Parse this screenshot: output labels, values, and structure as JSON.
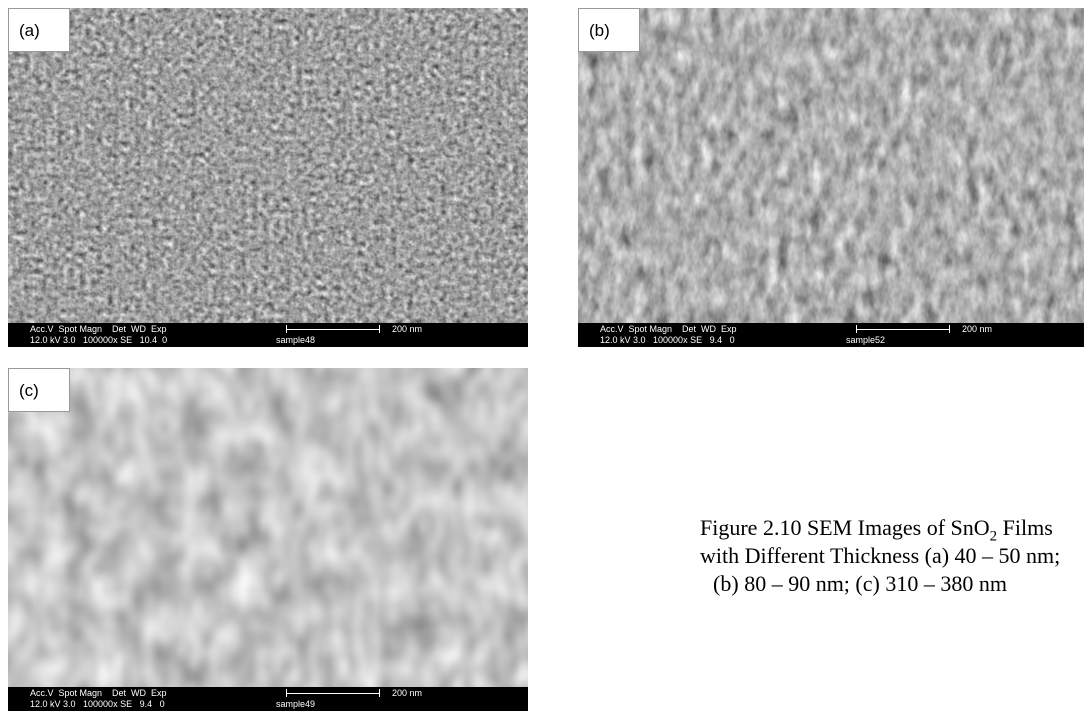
{
  "panels": [
    {
      "label": "(a)",
      "info_top": "Acc.V  Spot Magn    Det  WD  Exp",
      "info_bottom": "12.0 kV 3.0   100000x SE   10.4  0",
      "scale": "200 nm",
      "sample": "sample48"
    },
    {
      "label": "(b)",
      "info_top": "Acc.V  Spot Magn    Det  WD  Exp",
      "info_bottom": "12.0 kV 3.0   100000x SE   9.4   0",
      "scale": "200 nm",
      "sample": "sample52"
    },
    {
      "label": "(c)",
      "info_top": "Acc.V  Spot Magn    Det  WD  Exp",
      "info_bottom": "12.0 kV 3.0   100000x SE   9.4   0",
      "scale": "200 nm",
      "sample": "sample49"
    }
  ],
  "caption": {
    "line1_start": "Figure 2.10 SEM Images of SnO",
    "line1_sub": "2",
    "line1_end": " Films",
    "line2": "with Different Thickness (a) 40 – 50 nm;",
    "line3": "(b) 80 – 90 nm; (c) 310 – 380 nm"
  }
}
